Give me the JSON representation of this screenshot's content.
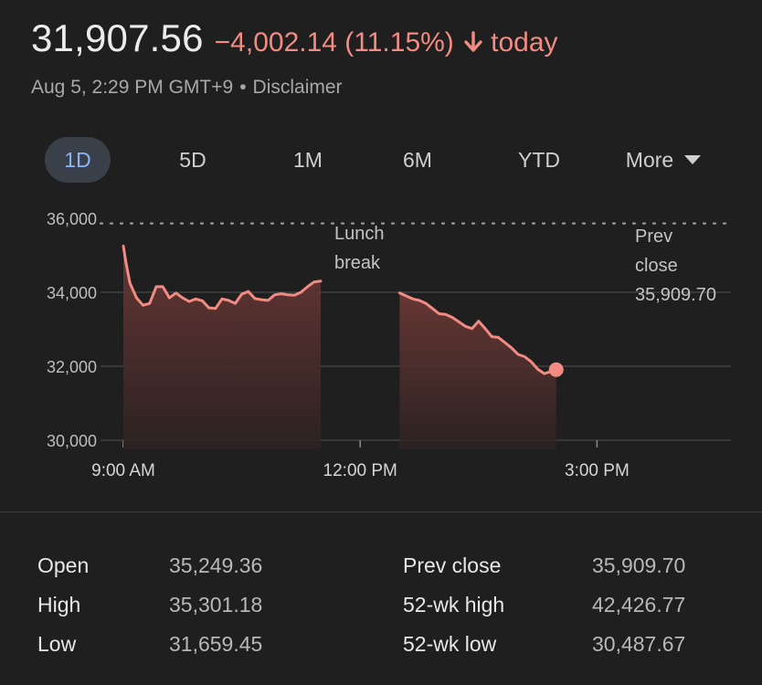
{
  "header": {
    "price": "31,907.56",
    "change": "−4,002.14 (11.15%)",
    "direction": "today",
    "date_time": "Aug 5, 2:29 PM GMT+9",
    "separator": "•",
    "disclaimer": "Disclaimer"
  },
  "tabs": [
    {
      "label": "1D",
      "active": true
    },
    {
      "label": "5D",
      "active": false
    },
    {
      "label": "1M",
      "active": false
    },
    {
      "label": "6M",
      "active": false
    },
    {
      "label": "YTD",
      "active": false
    },
    {
      "label": "More",
      "active": false
    }
  ],
  "chart_data": {
    "type": "area",
    "y_ticks": [
      "36,000",
      "34,000",
      "32,000",
      "30,000"
    ],
    "x_ticks": [
      "9:00 AM",
      "12:00 PM",
      "3:00 PM"
    ],
    "ylim": [
      30000,
      36000
    ],
    "prev_close": {
      "label_line1": "Prev",
      "label_line2": "close",
      "value": "35,909.70",
      "y": 35909.7
    },
    "annotation": {
      "line1": "Lunch",
      "line2": "break"
    },
    "series": [
      {
        "session": "morning",
        "x": [
          0,
          2,
          5,
          10,
          15,
          20,
          25,
          30,
          35,
          40,
          45,
          50,
          55,
          60,
          65,
          70,
          75,
          80,
          85,
          90,
          95,
          100,
          105,
          110,
          115,
          120,
          125,
          130,
          135,
          140,
          145,
          150
        ],
        "y": [
          35249,
          34800,
          34250,
          33850,
          33650,
          33700,
          34150,
          34150,
          33850,
          33980,
          33850,
          33750,
          33820,
          33770,
          33580,
          33560,
          33820,
          33780,
          33700,
          33950,
          34020,
          33830,
          33800,
          33780,
          33930,
          33960,
          33930,
          33920,
          34000,
          34150,
          34280,
          34300
        ]
      },
      {
        "session": "afternoon",
        "x": [
          210,
          215,
          220,
          225,
          230,
          235,
          240,
          245,
          250,
          255,
          260,
          265,
          270,
          275,
          280,
          285,
          290,
          295,
          300,
          305,
          310,
          315,
          320,
          325,
          329
        ],
        "y": [
          33980,
          33900,
          33820,
          33780,
          33700,
          33560,
          33420,
          33400,
          33320,
          33200,
          33080,
          33020,
          33220,
          33020,
          32800,
          32780,
          32640,
          32500,
          32320,
          32260,
          32120,
          31920,
          31800,
          31860,
          31907.56
        ]
      }
    ],
    "last_point": {
      "x": 329,
      "y": 31907.56
    },
    "colors": {
      "line": "#f28b82",
      "grid": "#505050",
      "fill_top": "#6b3836"
    }
  },
  "stats": {
    "left": [
      {
        "label": "Open",
        "value": "35,249.36"
      },
      {
        "label": "High",
        "value": "35,301.18"
      },
      {
        "label": "Low",
        "value": "31,659.45"
      }
    ],
    "right": [
      {
        "label": "Prev close",
        "value": "35,909.70"
      },
      {
        "label": "52-wk high",
        "value": "42,426.77"
      },
      {
        "label": "52-wk low",
        "value": "30,487.67"
      }
    ]
  }
}
